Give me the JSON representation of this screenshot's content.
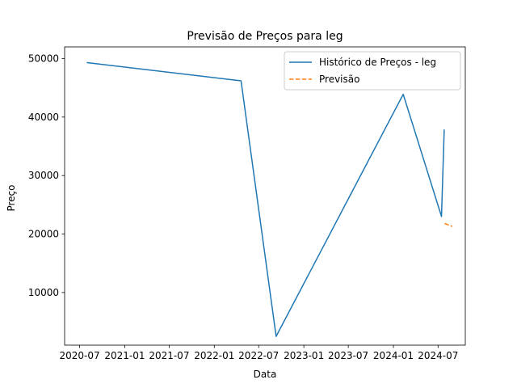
{
  "chart_data": {
    "type": "line",
    "title": "Previsão de Preços para leg",
    "xlabel": "Data",
    "ylabel": "Preço",
    "grid": false,
    "legend_position": "top-right",
    "xlim": [
      "2020-05-01",
      "2024-10-20"
    ],
    "ylim": [
      1000,
      52000
    ],
    "x_ticks": [
      "2020-07",
      "2021-01",
      "2021-07",
      "2022-01",
      "2022-07",
      "2023-01",
      "2023-07",
      "2024-01",
      "2024-07"
    ],
    "y_ticks": [
      10000,
      20000,
      30000,
      40000,
      50000
    ],
    "series": [
      {
        "name": "Histórico de Preços - leg",
        "color": "#1f77b4",
        "style": "solid",
        "points": [
          {
            "x": "2020-08-01",
            "y": 49300
          },
          {
            "x": "2022-04-20",
            "y": 46200
          },
          {
            "x": "2022-09-10",
            "y": 2500
          },
          {
            "x": "2024-02-10",
            "y": 43900
          },
          {
            "x": "2024-07-15",
            "y": 23000
          },
          {
            "x": "2024-07-26",
            "y": 37800
          }
        ]
      },
      {
        "name": "Previsão",
        "color": "#ff7f0e",
        "style": "dashed",
        "points": [
          {
            "x": "2024-07-28",
            "y": 21800
          },
          {
            "x": "2024-08-28",
            "y": 21300
          }
        ]
      }
    ]
  }
}
